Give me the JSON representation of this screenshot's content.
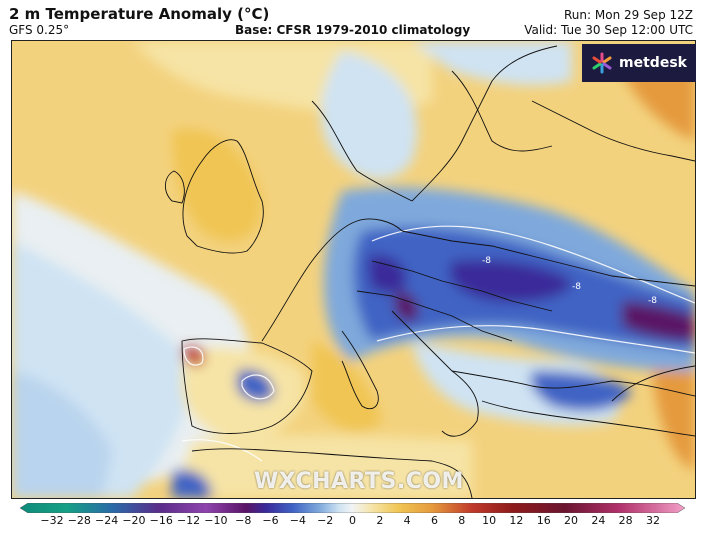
{
  "header": {
    "title": "2 m Temperature Anomaly (°C)",
    "model": "GFS 0.25°",
    "base": "Base: CFSR 1979-2010 climatology",
    "run": "Run: Mon 29 Sep 12Z",
    "valid": "Valid: Tue 30 Sep 12:00 UTC"
  },
  "logo": {
    "name": "metdesk",
    "icon": "pinwheel-logo-icon"
  },
  "watermark": "WXCHARTS.COM",
  "map": {
    "region": "Europe",
    "contour_labels": [
      "-8",
      "-8",
      "-8"
    ]
  },
  "colorbar": {
    "ticks": [
      "−32",
      "−28",
      "−24",
      "−20",
      "−16",
      "−12",
      "−10",
      "−8",
      "−6",
      "−4",
      "−2",
      "0",
      "2",
      "4",
      "6",
      "8",
      "10",
      "12",
      "16",
      "20",
      "24",
      "28",
      "32"
    ],
    "colors": {
      "deep_purple": "#5a1466",
      "indigo": "#3a2a9a",
      "blue": "#3f63c4",
      "mid_blue": "#7fa9dc",
      "light_blue": "#cfe3f3",
      "near_zero": "#f2f4f4",
      "light_yellow": "#f6e4a6",
      "yellow": "#f0c553",
      "orange": "#e59a3c",
      "red": "#c0392b",
      "pink": "#d94f8c"
    }
  }
}
